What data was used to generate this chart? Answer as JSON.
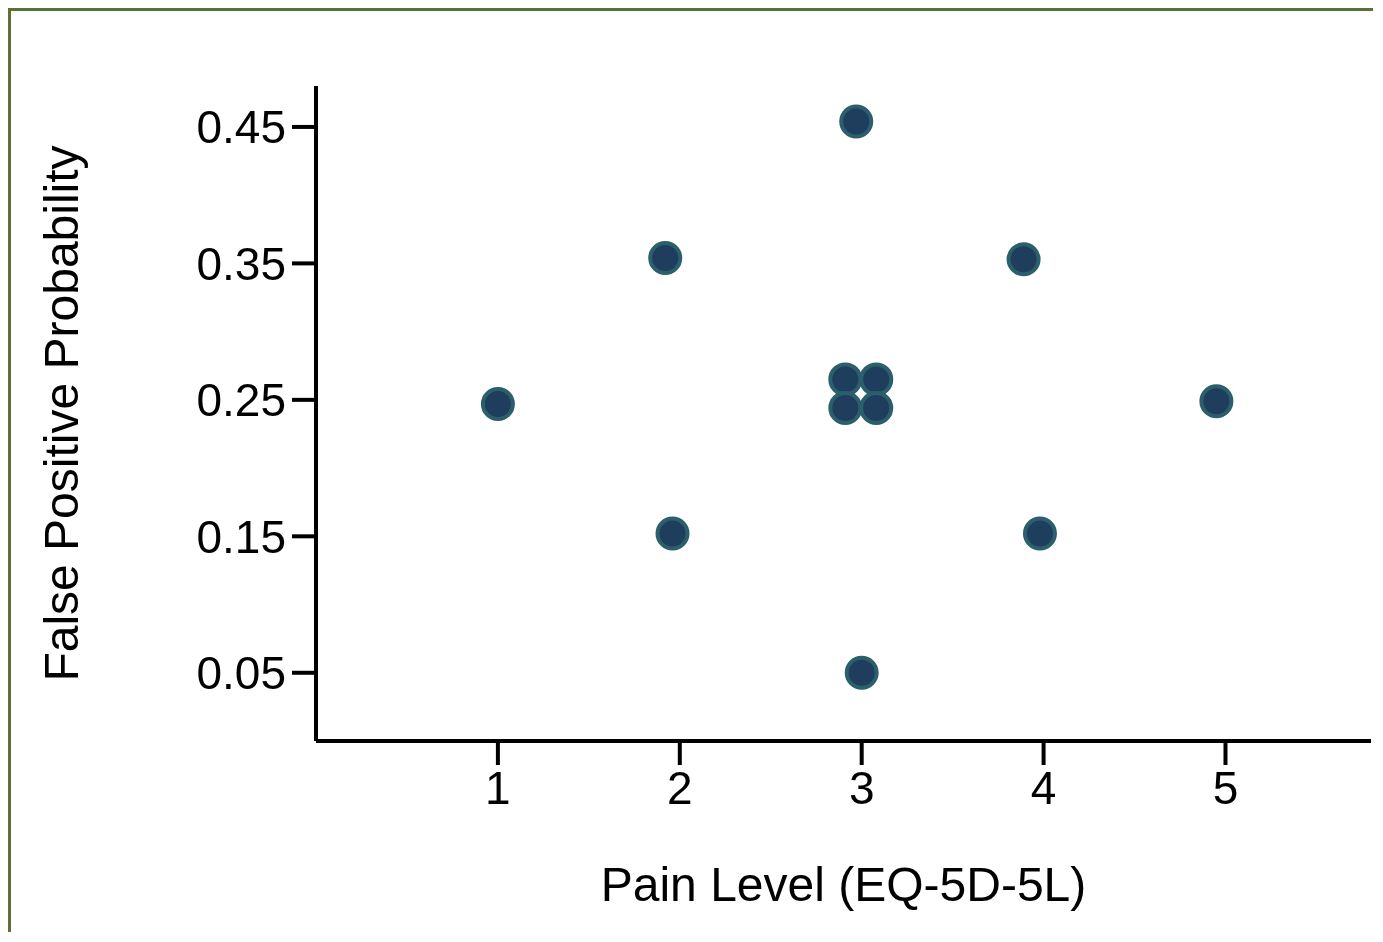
{
  "chart_data": {
    "type": "scatter",
    "xlabel": "Pain Level (EQ-5D-5L)",
    "ylabel": "False Positive Probability",
    "x": [
      1.0,
      1.92,
      1.96,
      2.97,
      2.91,
      3.08,
      2.91,
      3.08,
      3.0,
      3.89,
      3.98,
      4.95
    ],
    "values": [
      0.247,
      0.354,
      0.152,
      0.454,
      0.265,
      0.265,
      0.244,
      0.244,
      0.05,
      0.353,
      0.152,
      0.249
    ],
    "color": "#1f3d5c",
    "marker": "circle",
    "grid": false,
    "legend": false,
    "xlim": [
      0,
      5.8
    ],
    "xticks": [
      1,
      2,
      3,
      4,
      5
    ],
    "ylim": [
      0,
      0.48
    ],
    "yticks": [
      0.05,
      0.15,
      0.25,
      0.35,
      0.45
    ]
  }
}
